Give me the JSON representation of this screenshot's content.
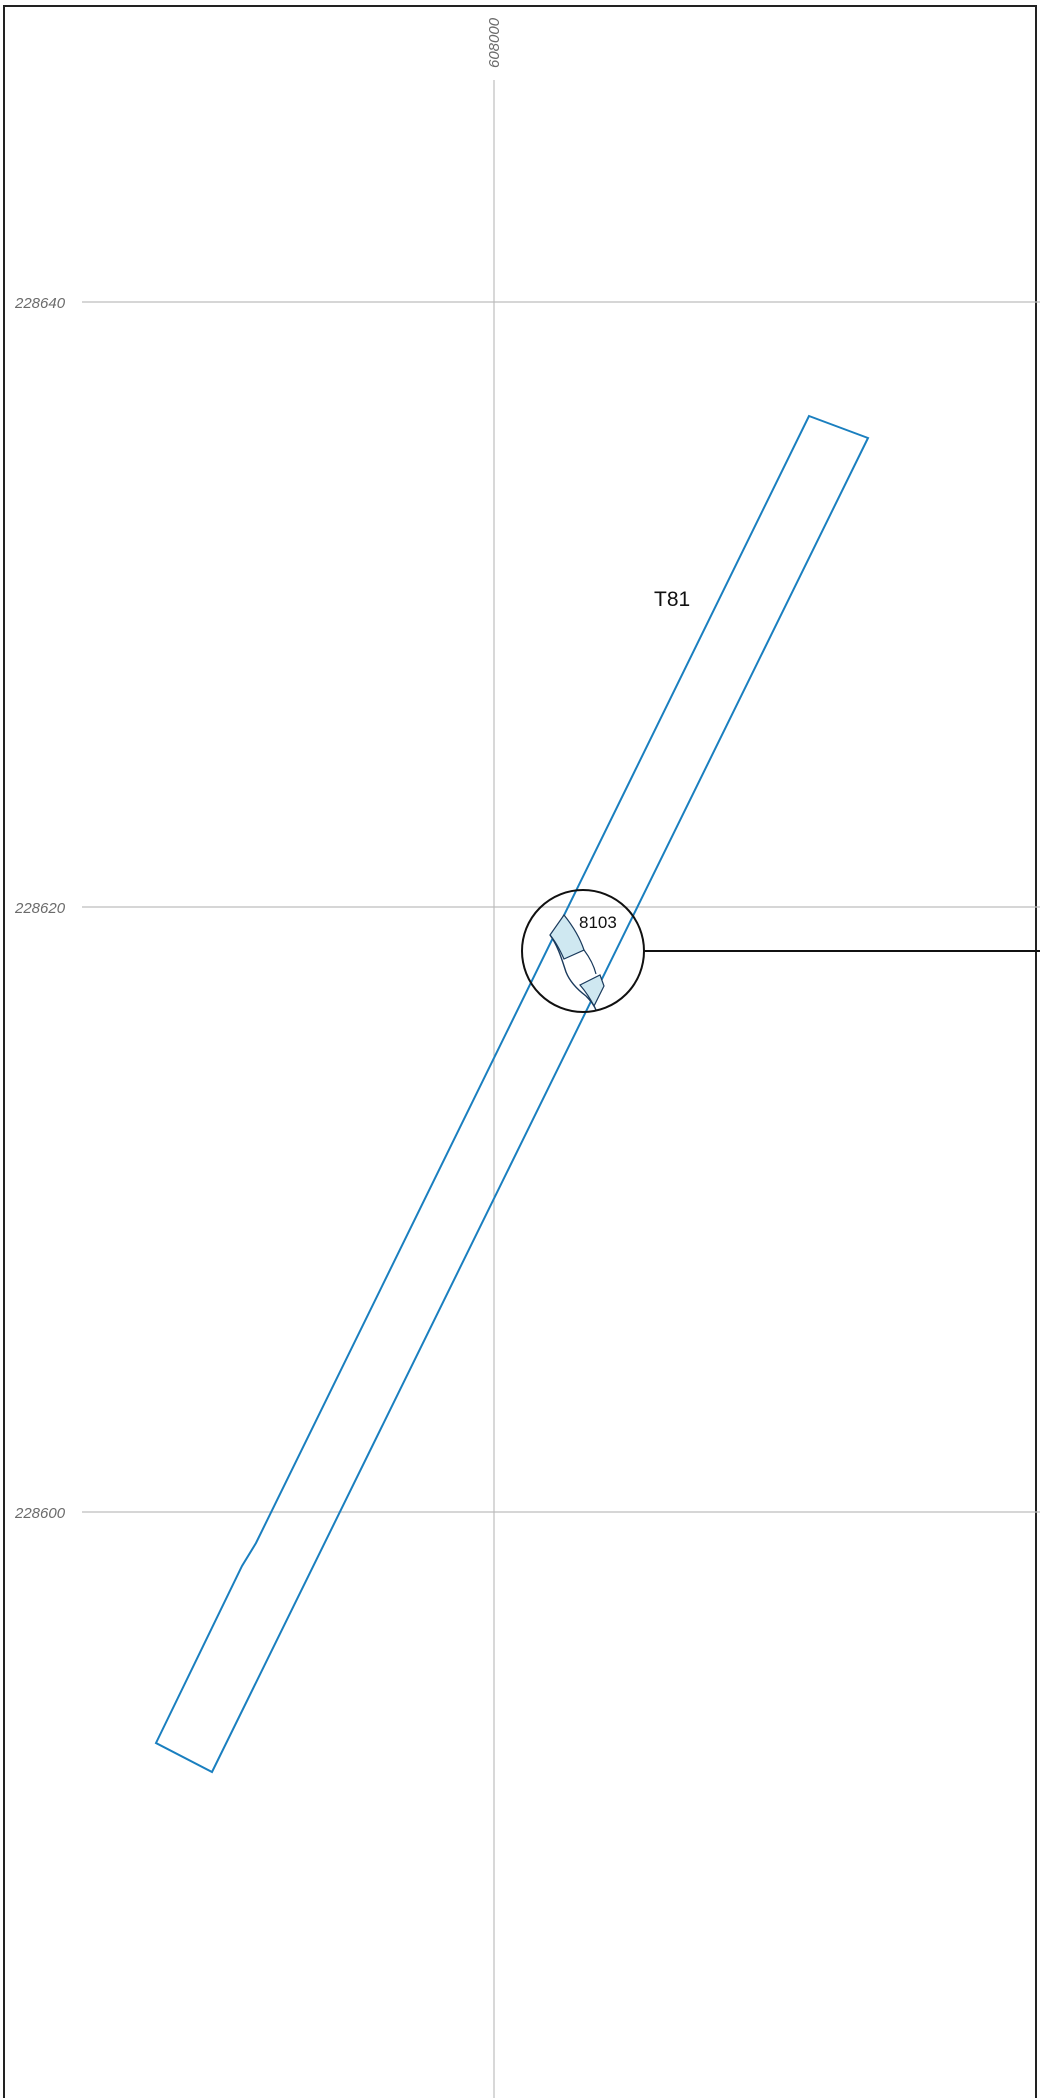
{
  "map": {
    "grid": {
      "easting_labels": [
        "608000"
      ],
      "northing_labels": [
        "228640",
        "228620",
        "228600"
      ]
    },
    "trench": {
      "label": "T81"
    },
    "feature": {
      "id": "8103"
    },
    "colors": {
      "frame": "#222222",
      "grid": "#bdbdbd",
      "trench_outline": "#1a7fbf",
      "feature_fill": "#cfe8f1",
      "feature_outline": "#1a3a5c",
      "callout": "#111111",
      "grid_label": "#6b6b6b"
    }
  }
}
